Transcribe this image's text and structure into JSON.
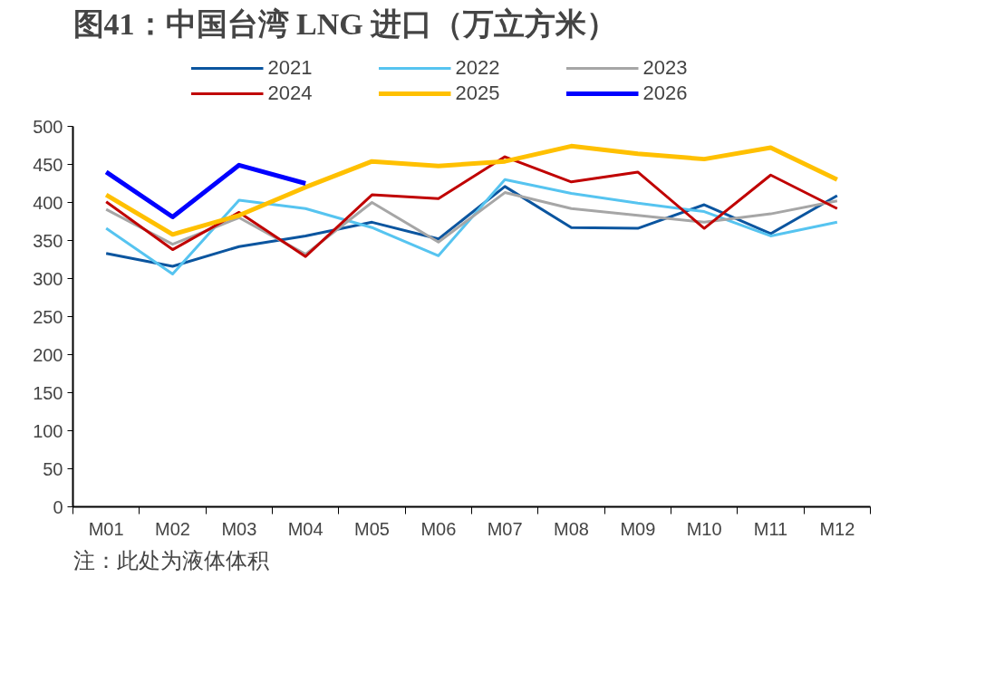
{
  "chart_data": {
    "type": "line",
    "title": "图41：中国台湾 LNG 进口（万立方米）",
    "categories": [
      "M01",
      "M02",
      "M03",
      "M04",
      "M05",
      "M06",
      "M07",
      "M08",
      "M09",
      "M10",
      "M11",
      "M12"
    ],
    "series": [
      {
        "name": "2021",
        "color": "#0b559f",
        "values": [
          333,
          316,
          342,
          356,
          374,
          352,
          421,
          367,
          366,
          397,
          359,
          409
        ]
      },
      {
        "name": "2022",
        "color": "#56c4f0",
        "values": [
          366,
          306,
          403,
          392,
          367,
          330,
          430,
          412,
          399,
          388,
          356,
          374
        ]
      },
      {
        "name": "2023",
        "color": "#a6a6a6",
        "values": [
          391,
          345,
          380,
          332,
          400,
          348,
          413,
          392,
          383,
          374,
          385,
          402
        ]
      },
      {
        "name": "2024",
        "color": "#c00000",
        "values": [
          401,
          338,
          387,
          329,
          410,
          405,
          460,
          427,
          440,
          366,
          436,
          392
        ]
      },
      {
        "name": "2025",
        "color": "#ffc000",
        "values": [
          410,
          358,
          383,
          420,
          454,
          448,
          454,
          474,
          464,
          457,
          472,
          430
        ]
      },
      {
        "name": "2026",
        "color": "#0000ff",
        "values": [
          440,
          381,
          449,
          425,
          null,
          null,
          null,
          null,
          null,
          null,
          null,
          null
        ]
      }
    ],
    "ylim": [
      0,
      500
    ],
    "yticks": [
      0,
      50,
      100,
      150,
      200,
      250,
      300,
      350,
      400,
      450,
      500
    ],
    "grid": false,
    "legend": "top",
    "annotations": [
      "注：此处为液体体积"
    ]
  }
}
